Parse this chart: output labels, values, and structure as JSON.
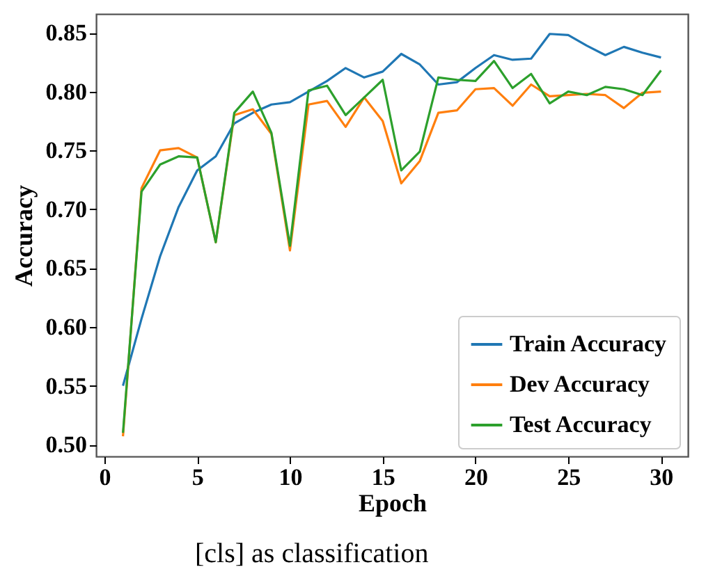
{
  "chart_data": {
    "type": "line",
    "xlabel": "Epoch",
    "ylabel": "Accuracy",
    "annotations": [
      "[cls] as classification"
    ],
    "x": [
      1,
      2,
      3,
      4,
      5,
      6,
      7,
      8,
      9,
      10,
      11,
      12,
      13,
      14,
      15,
      16,
      17,
      18,
      19,
      20,
      21,
      22,
      23,
      24,
      25,
      26,
      27,
      28,
      29,
      30
    ],
    "xlim": [
      -0.45,
      31.45
    ],
    "xticks": [
      0,
      5,
      10,
      15,
      20,
      25,
      30
    ],
    "ylim": [
      0.49,
      0.866
    ],
    "yticks": [
      {
        "value": 0.5,
        "label": "0.50"
      },
      0.55,
      {
        "value": 0.6,
        "label": "0.60"
      },
      0.65,
      {
        "value": 0.7,
        "label": "0.70"
      },
      0.75,
      {
        "value": 0.8,
        "label": "0.80"
      },
      0.85
    ],
    "grid": false,
    "legend": "bottom right",
    "series": [
      {
        "name": "Train Accuracy",
        "color": "#1f77b4",
        "values": [
          0.55,
          0.607,
          0.66,
          0.702,
          0.733,
          0.745,
          0.773,
          0.782,
          0.789,
          0.791,
          0.8,
          0.809,
          0.82,
          0.812,
          0.817,
          0.832,
          0.823,
          0.806,
          0.808,
          0.82,
          0.831,
          0.827,
          0.828,
          0.849,
          0.848,
          0.839,
          0.831,
          0.838,
          0.833,
          0.829
        ]
      },
      {
        "name": "Dev Accuracy",
        "color": "#ff7f0e",
        "values": [
          0.507,
          0.718,
          0.75,
          0.752,
          0.744,
          0.672,
          0.78,
          0.785,
          0.764,
          0.665,
          0.789,
          0.792,
          0.77,
          0.795,
          0.775,
          0.722,
          0.741,
          0.782,
          0.784,
          0.802,
          0.803,
          0.788,
          0.806,
          0.796,
          0.797,
          0.798,
          0.797,
          0.786,
          0.799,
          0.8
        ]
      },
      {
        "name": "Test Accuracy",
        "color": "#2ca02c",
        "values": [
          0.51,
          0.715,
          0.738,
          0.745,
          0.744,
          0.672,
          0.782,
          0.8,
          0.765,
          0.669,
          0.801,
          0.805,
          0.78,
          0.795,
          0.81,
          0.733,
          0.749,
          0.812,
          0.81,
          0.809,
          0.826,
          0.803,
          0.815,
          0.79,
          0.8,
          0.797,
          0.804,
          0.802,
          0.797,
          0.818
        ]
      }
    ]
  }
}
